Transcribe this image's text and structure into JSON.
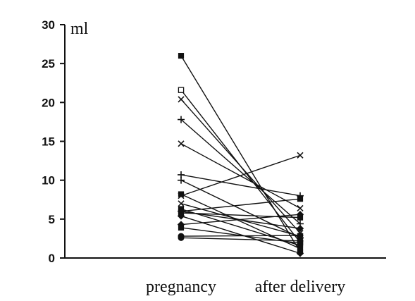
{
  "chart_data": {
    "type": "line",
    "unit_label": "ml",
    "categories": [
      "pregnancy",
      "after delivery"
    ],
    "ylim": [
      0,
      30
    ],
    "yticks": [
      0,
      5,
      10,
      15,
      20,
      25,
      30
    ],
    "ytick_labels": [
      "0",
      "5",
      "10",
      "15",
      "20",
      "25",
      "30"
    ],
    "legend": "none",
    "grid": false,
    "series": [
      {
        "values": [
          26.0,
          0.8
        ],
        "marker": "square"
      },
      {
        "values": [
          21.6,
          2.0
        ],
        "marker": "square-open"
      },
      {
        "values": [
          20.4,
          3.2
        ],
        "marker": "cross"
      },
      {
        "values": [
          17.8,
          4.4
        ],
        "marker": "plus"
      },
      {
        "values": [
          14.7,
          6.4
        ],
        "marker": "cross"
      },
      {
        "values": [
          10.7,
          8.0
        ],
        "marker": "plus"
      },
      {
        "values": [
          10.0,
          2.6
        ],
        "marker": "plus"
      },
      {
        "values": [
          8.2,
          1.2
        ],
        "marker": "square"
      },
      {
        "values": [
          8.0,
          13.2
        ],
        "marker": "cross"
      },
      {
        "values": [
          7.0,
          2.8
        ],
        "marker": "cross"
      },
      {
        "values": [
          6.3,
          1.6
        ],
        "marker": "square"
      },
      {
        "values": [
          6.0,
          3.8
        ],
        "marker": "diamond"
      },
      {
        "values": [
          6.0,
          7.6
        ],
        "marker": "square"
      },
      {
        "values": [
          5.8,
          5.2
        ],
        "marker": "square"
      },
      {
        "values": [
          5.4,
          0.6
        ],
        "marker": "diamond"
      },
      {
        "values": [
          4.3,
          5.6
        ],
        "marker": "diamond"
      },
      {
        "values": [
          3.9,
          1.9
        ],
        "marker": "square"
      },
      {
        "values": [
          2.8,
          2.9
        ],
        "marker": "circle"
      },
      {
        "values": [
          2.6,
          2.2
        ],
        "marker": "circle"
      }
    ]
  }
}
